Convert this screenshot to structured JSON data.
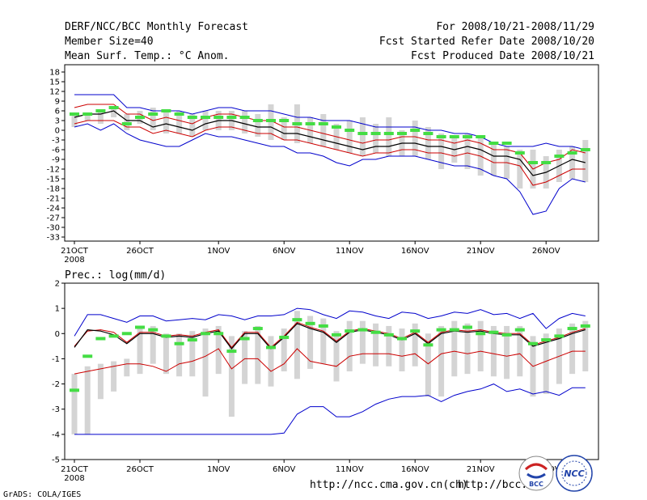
{
  "header": {
    "title": "DERF/NCC/BCC Monthly Forecast",
    "member_size": "Member Size=40",
    "variable": "Mean Surf. Temp.: °C Anom.",
    "period": "For 2008/10/21-2008/11/29",
    "started": "Fcst Started Refer Date 2008/10/20",
    "produced": "Fcst Produced Date 2008/10/21"
  },
  "footer": {
    "grads": "GrADS: COLA/IGES",
    "url1": "http://ncc.cma.gov.cn(ch)",
    "url2": "http://bcc.",
    "logo1": "BCC",
    "logo2": "NCC"
  },
  "colors": {
    "envelope": "#0000cc",
    "std": "#cc0000",
    "mean": "#000000",
    "obs": "#44dd44",
    "box": "#d4d4d4"
  },
  "chart_data": [
    {
      "type": "line",
      "title": "Mean Surf. Temp.: °C Anom.",
      "x_ticks": [
        "21OCT",
        "26OCT",
        "1NOV",
        "6NOV",
        "11NOV",
        "16NOV",
        "21NOV",
        "26NOV"
      ],
      "x_tick_day": [
        0,
        5,
        11,
        16,
        21,
        26,
        31,
        36
      ],
      "x_sublabel": "2008",
      "y_ticks": [
        18,
        15,
        12,
        9,
        6,
        3,
        0,
        -3,
        -6,
        -9,
        -12,
        -15,
        -18,
        -21,
        -24,
        -27,
        -30,
        -33
      ],
      "ylim": [
        -35,
        19
      ],
      "days": [
        0,
        1,
        2,
        3,
        4,
        5,
        6,
        7,
        8,
        9,
        10,
        11,
        12,
        13,
        14,
        15,
        16,
        17,
        18,
        19,
        20,
        21,
        22,
        23,
        24,
        25,
        26,
        27,
        28,
        29,
        30,
        31,
        32,
        33,
        34,
        35,
        36,
        37,
        38,
        39
      ],
      "series": [
        {
          "name": "max",
          "values": [
            11,
            11,
            11,
            11,
            7,
            7,
            6,
            6,
            6,
            5,
            6,
            7,
            7,
            6,
            6,
            6,
            5,
            4,
            4,
            3,
            3,
            3,
            2,
            1,
            1,
            1,
            1,
            0,
            0,
            -1,
            -1,
            -2,
            -4,
            -5,
            -5,
            -5,
            -4,
            -5,
            -5,
            -6
          ]
        },
        {
          "name": "upper_std",
          "values": [
            7,
            8,
            8,
            8,
            5,
            5,
            3,
            4,
            3,
            2,
            4,
            5,
            5,
            4,
            3,
            3,
            1,
            1,
            0,
            -1,
            -2,
            -3,
            -4,
            -3,
            -3,
            -2,
            -2,
            -3,
            -3,
            -4,
            -3,
            -4,
            -6,
            -6,
            -7,
            -12,
            -10,
            -9,
            -6,
            -7
          ]
        },
        {
          "name": "mean",
          "values": [
            4,
            5,
            5,
            6,
            3,
            3,
            1,
            2,
            1,
            0,
            2,
            3,
            3,
            2,
            1,
            1,
            -1,
            -1,
            -2,
            -3,
            -4,
            -5,
            -6,
            -5,
            -5,
            -4,
            -4,
            -5,
            -5,
            -6,
            -5,
            -6,
            -8,
            -8,
            -9,
            -14,
            -13,
            -11,
            -9,
            -10
          ]
        },
        {
          "name": "lower_std",
          "values": [
            2,
            3,
            3,
            3,
            1,
            1,
            -1,
            0,
            -1,
            -2,
            0,
            1,
            1,
            0,
            -1,
            -1,
            -3,
            -3,
            -4,
            -5,
            -6,
            -7,
            -8,
            -7,
            -7,
            -6,
            -6,
            -7,
            -7,
            -8,
            -7,
            -8,
            -10,
            -10,
            -11,
            -17,
            -16,
            -14,
            -12,
            -12
          ]
        },
        {
          "name": "min",
          "values": [
            1,
            2,
            0,
            2,
            -1,
            -3,
            -4,
            -5,
            -5,
            -3,
            -1,
            -2,
            -2,
            -3,
            -4,
            -5,
            -5,
            -7,
            -7,
            -8,
            -10,
            -11,
            -9,
            -9,
            -8,
            -8,
            -8,
            -9,
            -10,
            -11,
            -11,
            -12,
            -14,
            -15,
            -19,
            -26,
            -25,
            -18,
            -15,
            -16
          ]
        },
        {
          "name": "observed",
          "values": [
            5,
            5,
            6,
            7,
            2,
            4,
            5,
            6,
            5,
            4,
            4,
            4,
            4,
            4,
            3,
            3,
            3,
            2,
            2,
            2,
            1,
            0,
            -1,
            -1,
            -1,
            -1,
            0,
            -1,
            -2,
            -2,
            -2,
            -2,
            -4,
            -4,
            -7,
            -10,
            -10,
            -8,
            -7,
            -6
          ]
        }
      ],
      "box_range": [
        [
          5,
          1
        ],
        [
          5,
          3
        ],
        [
          6,
          2
        ],
        [
          7,
          4
        ],
        [
          5,
          0
        ],
        [
          6,
          2
        ],
        [
          7,
          0
        ],
        [
          6,
          -1
        ],
        [
          6,
          -1
        ],
        [
          5,
          -2
        ],
        [
          6,
          0
        ],
        [
          6,
          0
        ],
        [
          6,
          0
        ],
        [
          6,
          -1
        ],
        [
          5,
          -2
        ],
        [
          8,
          -3
        ],
        [
          4,
          -3
        ],
        [
          8,
          -4
        ],
        [
          4,
          -4
        ],
        [
          5,
          -5
        ],
        [
          2,
          -6
        ],
        [
          3,
          -7
        ],
        [
          4,
          -8
        ],
        [
          2,
          -7
        ],
        [
          4,
          -8
        ],
        [
          0,
          -8
        ],
        [
          3,
          -8
        ],
        [
          1,
          -9
        ],
        [
          -1,
          -12
        ],
        [
          -2,
          -10
        ],
        [
          -1,
          -12
        ],
        [
          -2,
          -14
        ],
        [
          -4,
          -14
        ],
        [
          -5,
          -15
        ],
        [
          -6,
          -18
        ],
        [
          -6,
          -18
        ],
        [
          -8,
          -18
        ],
        [
          -6,
          -16
        ],
        [
          -5,
          -15
        ],
        [
          -3,
          -16
        ]
      ]
    },
    {
      "type": "line",
      "title": "Prec.: log(mm/d)",
      "x_ticks": [
        "21OCT",
        "26OCT",
        "1NOV",
        "6NOV",
        "11NOV",
        "16NOV",
        "21NOV",
        "26NOV"
      ],
      "x_tick_day": [
        0,
        5,
        11,
        16,
        21,
        26,
        31,
        36
      ],
      "x_sublabel": "2008",
      "y_ticks": [
        2,
        1,
        0,
        -1,
        -2,
        -3,
        -4,
        -5
      ],
      "ylim": [
        -5,
        2
      ],
      "days": [
        0,
        1,
        2,
        3,
        4,
        5,
        6,
        7,
        8,
        9,
        10,
        11,
        12,
        13,
        14,
        15,
        16,
        17,
        18,
        19,
        20,
        21,
        22,
        23,
        24,
        25,
        26,
        27,
        28,
        29,
        30,
        31,
        32,
        33,
        34,
        35,
        36,
        37,
        38,
        39
      ],
      "series": [
        {
          "name": "max",
          "values": [
            -0.1,
            0.75,
            0.75,
            0.6,
            0.45,
            0.7,
            0.7,
            0.5,
            0.55,
            0.6,
            0.55,
            0.75,
            0.7,
            0.55,
            0.7,
            0.7,
            0.75,
            1.0,
            0.95,
            0.75,
            0.6,
            0.9,
            0.85,
            0.7,
            0.6,
            0.85,
            0.8,
            0.6,
            0.7,
            0.85,
            0.8,
            0.95,
            0.75,
            0.8,
            0.6,
            0.8,
            0.2,
            0.6,
            0.8,
            0.7
          ]
        },
        {
          "name": "upper_std",
          "values": [
            -0.5,
            0.1,
            0.15,
            0.05,
            -0.35,
            0.05,
            0.05,
            -0.1,
            -0.05,
            -0.1,
            0.05,
            0.15,
            -0.55,
            0.05,
            0.05,
            -0.55,
            -0.1,
            0.45,
            0.25,
            0.1,
            -0.3,
            0.1,
            0.2,
            0.1,
            0.0,
            -0.2,
            0.05,
            -0.35,
            0.05,
            0.15,
            0.1,
            0.15,
            0.05,
            0.0,
            0.0,
            -0.45,
            -0.3,
            -0.15,
            0.05,
            0.2
          ]
        },
        {
          "name": "mean",
          "values": [
            -0.55,
            0.15,
            0.1,
            -0.05,
            -0.4,
            0.0,
            0.0,
            -0.15,
            -0.1,
            -0.15,
            0.0,
            0.1,
            -0.6,
            0.0,
            0.0,
            -0.6,
            -0.15,
            0.4,
            0.2,
            0.05,
            -0.35,
            0.05,
            0.15,
            0.05,
            -0.05,
            -0.25,
            0.0,
            -0.4,
            0.0,
            0.1,
            0.05,
            0.1,
            0.0,
            -0.05,
            -0.05,
            -0.5,
            -0.35,
            -0.2,
            0.0,
            0.15
          ]
        },
        {
          "name": "lower_std",
          "values": [
            -1.6,
            -1.5,
            -1.4,
            -1.3,
            -1.2,
            -1.2,
            -1.3,
            -1.5,
            -1.2,
            -1.1,
            -0.9,
            -0.6,
            -1.4,
            -1.0,
            -1.0,
            -1.5,
            -1.2,
            -0.6,
            -1.1,
            -1.2,
            -1.3,
            -0.9,
            -0.8,
            -0.8,
            -0.8,
            -0.9,
            -0.8,
            -1.2,
            -0.8,
            -0.7,
            -0.8,
            -0.7,
            -0.8,
            -0.9,
            -0.8,
            -1.3,
            -1.1,
            -0.9,
            -0.7,
            -0.7
          ]
        },
        {
          "name": "min",
          "values": [
            -4,
            -4,
            -4,
            -4,
            -4,
            -4,
            -4,
            -4,
            -4,
            -4,
            -4,
            -4,
            -4,
            -4,
            -4,
            -4,
            -3.95,
            -3.2,
            -2.9,
            -2.9,
            -3.3,
            -3.3,
            -3.1,
            -2.8,
            -2.6,
            -2.5,
            -2.5,
            -2.45,
            -2.7,
            -2.45,
            -2.3,
            -2.2,
            -2.0,
            -2.3,
            -2.2,
            -2.4,
            -2.3,
            -2.45,
            -2.15,
            -2.15
          ]
        },
        {
          "name": "observed",
          "values": [
            -2.25,
            -0.9,
            -0.2,
            -0.1,
            0.0,
            0.25,
            0.15,
            -0.1,
            -0.4,
            -0.25,
            0.0,
            0.0,
            -0.7,
            -0.2,
            0.2,
            -0.55,
            -0.15,
            0.55,
            0.4,
            0.3,
            -0.05,
            0.1,
            0.15,
            0.05,
            -0.05,
            -0.2,
            0.1,
            -0.45,
            0.15,
            0.15,
            0.25,
            0.0,
            0.05,
            -0.05,
            0.15,
            -0.4,
            -0.25,
            -0.1,
            0.2,
            0.3
          ]
        }
      ],
      "box_range": [
        [
          -1.6,
          -4.0
        ],
        [
          -1.3,
          -4.0
        ],
        [
          -1.2,
          -2.6
        ],
        [
          -1.1,
          -2.3
        ],
        [
          -1.0,
          -1.7
        ],
        [
          0.3,
          -1.6
        ],
        [
          0.3,
          -1.2
        ],
        [
          0.0,
          -1.6
        ],
        [
          0.0,
          -1.7
        ],
        [
          0.1,
          -1.7
        ],
        [
          0.2,
          -2.5
        ],
        [
          0.3,
          -1.6
        ],
        [
          -0.1,
          -3.3
        ],
        [
          0.1,
          -2.0
        ],
        [
          0.3,
          -2.0
        ],
        [
          -0.1,
          -2.1
        ],
        [
          0.2,
          -1.5
        ],
        [
          0.9,
          -1.8
        ],
        [
          0.7,
          -1.4
        ],
        [
          0.6,
          -1.2
        ],
        [
          0.1,
          -1.9
        ],
        [
          0.5,
          -1.5
        ],
        [
          0.5,
          -1.2
        ],
        [
          0.4,
          -1.3
        ],
        [
          0.3,
          -1.3
        ],
        [
          0.2,
          -1.5
        ],
        [
          0.4,
          -1.3
        ],
        [
          0.0,
          -2.5
        ],
        [
          0.3,
          -2.5
        ],
        [
          0.5,
          -1.7
        ],
        [
          0.4,
          -1.6
        ],
        [
          0.5,
          -1.5
        ],
        [
          0.3,
          -1.7
        ],
        [
          0.3,
          -1.8
        ],
        [
          0.3,
          -1.7
        ],
        [
          -0.1,
          -2.5
        ],
        [
          0.0,
          -2.4
        ],
        [
          0.2,
          -2.0
        ],
        [
          0.4,
          -1.6
        ],
        [
          0.5,
          -1.5
        ]
      ]
    }
  ]
}
